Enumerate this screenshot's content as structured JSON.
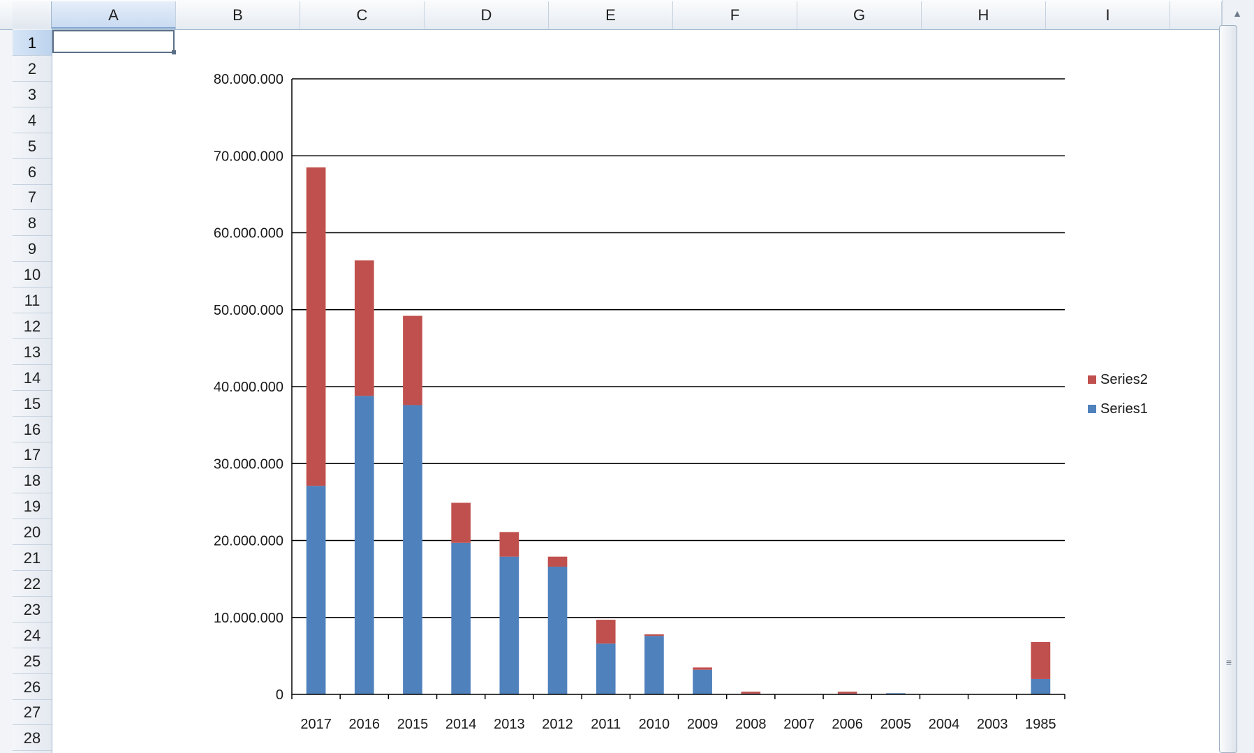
{
  "spreadsheet": {
    "columns": [
      "A",
      "B",
      "C",
      "D",
      "E",
      "F",
      "G",
      "H",
      "I"
    ],
    "selected_column": "A",
    "rows": [
      "1",
      "2",
      "3",
      "4",
      "5",
      "6",
      "7",
      "8",
      "9",
      "10",
      "11",
      "12",
      "13",
      "14",
      "15",
      "16",
      "17",
      "18",
      "19",
      "20",
      "21",
      "22",
      "23",
      "24",
      "25",
      "26",
      "27",
      "28"
    ],
    "selected_row": "1",
    "active_cell": "A1"
  },
  "icons": {
    "scroll_up": "scroll-up-arrow-icon",
    "scroll_grip": "scroll-grip-icon"
  },
  "chart_data": {
    "type": "bar",
    "stacked": true,
    "categories": [
      "2017",
      "2016",
      "2015",
      "2014",
      "2013",
      "2012",
      "2011",
      "2010",
      "2009",
      "2008",
      "2007",
      "2006",
      "2005",
      "2004",
      "2003",
      "1985"
    ],
    "series": [
      {
        "name": "Series1",
        "color": "#4f81bd",
        "values": [
          27100000,
          38800000,
          37600000,
          19700000,
          17900000,
          16600000,
          6600000,
          7600000,
          3200000,
          100000,
          0,
          100000,
          150000,
          0,
          0,
          2000000
        ]
      },
      {
        "name": "Series2",
        "color": "#c0504d",
        "values": [
          41400000,
          17600000,
          11600000,
          5200000,
          3200000,
          1300000,
          3100000,
          200000,
          300000,
          250000,
          0,
          250000,
          0,
          0,
          0,
          4800000
        ]
      }
    ],
    "y_ticks": [
      "0",
      "10.000.000",
      "20.000.000",
      "30.000.000",
      "40.000.000",
      "50.000.000",
      "60.000.000",
      "70.000.000",
      "80.000.000"
    ],
    "ylim": [
      0,
      80000000
    ],
    "grid": true,
    "legend_position": "right",
    "legend_order": [
      "Series2",
      "Series1"
    ],
    "title": "",
    "xlabel": "",
    "ylabel": ""
  }
}
